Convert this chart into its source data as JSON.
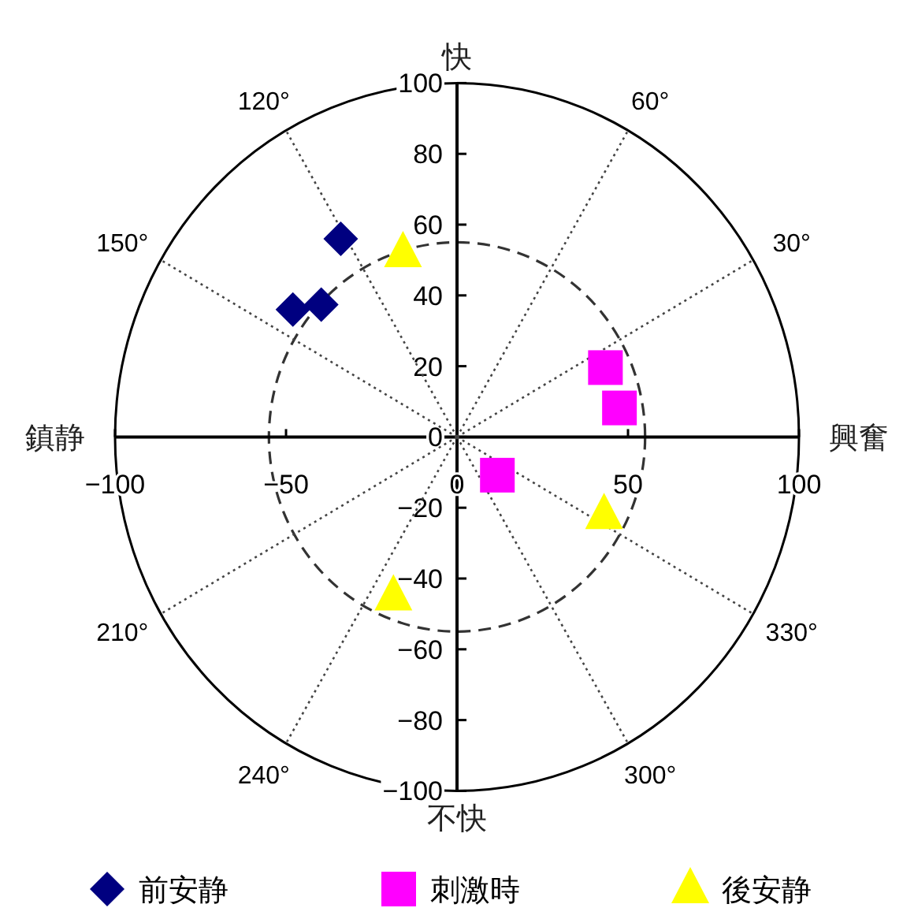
{
  "chart_data": {
    "type": "scatter",
    "xlim": [
      -100,
      100
    ],
    "ylim": [
      -100,
      100
    ],
    "xticks": [
      -100,
      -50,
      0,
      50,
      100
    ],
    "yticks": [
      -100,
      -80,
      -60,
      -40,
      -20,
      0,
      20,
      40,
      60,
      80,
      100
    ],
    "legend": "bottom",
    "series": [
      {
        "name": "前安静",
        "color": "#000080",
        "marker": "diamond",
        "x": [
          -34,
          -48,
          -39.7
        ],
        "values": [
          56,
          36,
          37.4
        ]
      },
      {
        "name": "刺激時",
        "color": "#ff00ff",
        "marker": "square",
        "x": [
          43.4,
          47.5,
          11.8
        ],
        "values": [
          19.6,
          8.2,
          -10.8
        ]
      },
      {
        "name": "後安静",
        "color": "#ffff00",
        "marker": "triangle",
        "x": [
          -15.8,
          43,
          -18.6
        ],
        "values": [
          52,
          -22,
          -45
        ]
      }
    ],
    "annotations": [
      "快",
      "不快",
      "鎮静",
      "興奮",
      "30°",
      "60°",
      "120°",
      "150°",
      "210°",
      "240°",
      "300°",
      "330°"
    ]
  }
}
